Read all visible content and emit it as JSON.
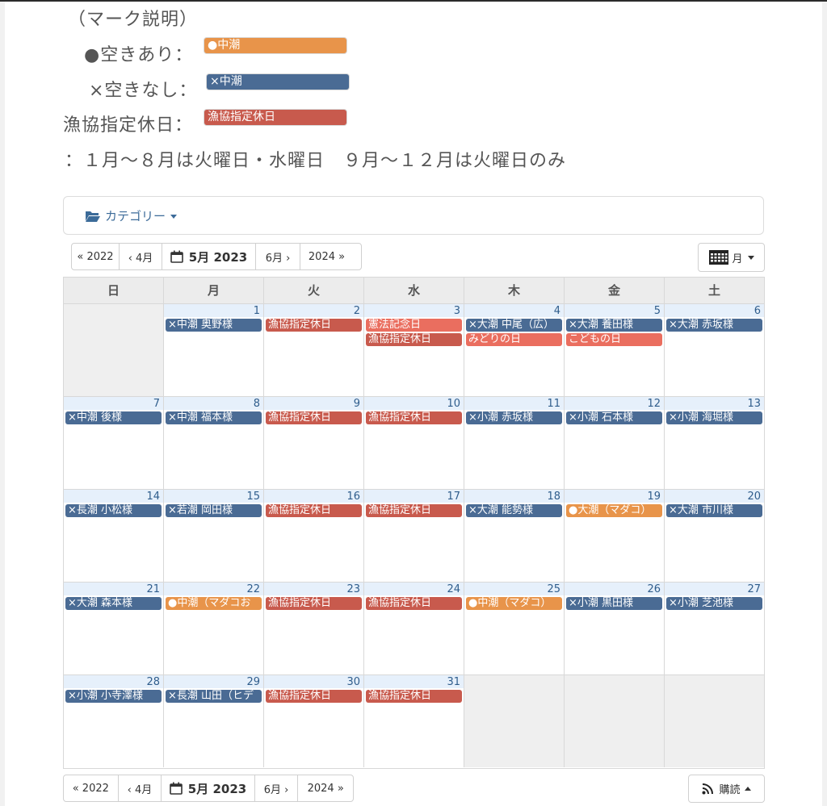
{
  "legend": {
    "heading": "（マーク説明）",
    "available_label": "●空きあり：",
    "available_tag": "●中潮",
    "full_label": "×空きなし：",
    "full_tag": "×中潮",
    "holiday_label": "漁協指定休日：",
    "holiday_tag": "漁協指定休日",
    "note": "：１月～８月は火曜日・水曜日　９月～１２月は火曜日のみ"
  },
  "colors": {
    "available": "#e8944a",
    "full": "#4a6b94",
    "holiday": "#c85a4d",
    "public_holiday": "#ea6e5f"
  },
  "category": {
    "label": "カテゴリー",
    "icon": "folder-open-icon"
  },
  "nav": {
    "prev_year": "« 2022",
    "prev_month": "‹ 4月",
    "current": "5月 2023",
    "next_month": "6月 ›",
    "next_year": "2024 »",
    "calendar_icon": "calendar-icon"
  },
  "view": {
    "label": "月",
    "icon": "calendar-grid-icon"
  },
  "subscribe": {
    "label": "購読",
    "icon": "rss-icon"
  },
  "weekdays": [
    "日",
    "月",
    "火",
    "水",
    "木",
    "金",
    "土"
  ],
  "weeks": [
    [
      {
        "day": "",
        "outside": true,
        "events": []
      },
      {
        "day": "1",
        "events": [
          {
            "text": "×中潮 奥野様",
            "type": "full"
          }
        ]
      },
      {
        "day": "2",
        "events": [
          {
            "text": "漁協指定休日",
            "type": "holiday"
          }
        ]
      },
      {
        "day": "3",
        "events": [
          {
            "text": "憲法記念日",
            "type": "public_holiday"
          },
          {
            "text": "漁協指定休日",
            "type": "holiday"
          }
        ]
      },
      {
        "day": "4",
        "events": [
          {
            "text": "×大潮 中尾（広）",
            "type": "full"
          },
          {
            "text": "みどりの日",
            "type": "public_holiday"
          }
        ]
      },
      {
        "day": "5",
        "events": [
          {
            "text": "×大潮 養田様",
            "type": "full"
          },
          {
            "text": "こどもの日",
            "type": "public_holiday"
          }
        ]
      },
      {
        "day": "6",
        "events": [
          {
            "text": "×大潮 赤坂様",
            "type": "full"
          }
        ]
      }
    ],
    [
      {
        "day": "7",
        "events": [
          {
            "text": "×中潮 後様",
            "type": "full"
          }
        ]
      },
      {
        "day": "8",
        "events": [
          {
            "text": "×中潮 福本様",
            "type": "full"
          }
        ]
      },
      {
        "day": "9",
        "events": [
          {
            "text": "漁協指定休日",
            "type": "holiday"
          }
        ]
      },
      {
        "day": "10",
        "events": [
          {
            "text": "漁協指定休日",
            "type": "holiday"
          }
        ]
      },
      {
        "day": "11",
        "events": [
          {
            "text": "×小潮 赤坂様",
            "type": "full"
          }
        ]
      },
      {
        "day": "12",
        "events": [
          {
            "text": "×小潮 石本様",
            "type": "full"
          }
        ]
      },
      {
        "day": "13",
        "events": [
          {
            "text": "×小潮 海堀様",
            "type": "full"
          }
        ]
      }
    ],
    [
      {
        "day": "14",
        "events": [
          {
            "text": "×長潮 小松様",
            "type": "full"
          }
        ]
      },
      {
        "day": "15",
        "events": [
          {
            "text": "×若潮 岡田様",
            "type": "full"
          }
        ]
      },
      {
        "day": "16",
        "events": [
          {
            "text": "漁協指定休日",
            "type": "holiday"
          }
        ]
      },
      {
        "day": "17",
        "events": [
          {
            "text": "漁協指定休日",
            "type": "holiday"
          }
        ]
      },
      {
        "day": "18",
        "events": [
          {
            "text": "×大潮 能勢様",
            "type": "full"
          }
        ]
      },
      {
        "day": "19",
        "events": [
          {
            "text": "●大潮（マダコ）",
            "type": "available"
          }
        ]
      },
      {
        "day": "20",
        "events": [
          {
            "text": "×大潮 市川様",
            "type": "full"
          }
        ]
      }
    ],
    [
      {
        "day": "21",
        "events": [
          {
            "text": "×大潮 森本様",
            "type": "full"
          }
        ]
      },
      {
        "day": "22",
        "events": [
          {
            "text": "●中潮（マダコお",
            "type": "available"
          }
        ]
      },
      {
        "day": "23",
        "events": [
          {
            "text": "漁協指定休日",
            "type": "holiday"
          }
        ]
      },
      {
        "day": "24",
        "events": [
          {
            "text": "漁協指定休日",
            "type": "holiday"
          }
        ]
      },
      {
        "day": "25",
        "events": [
          {
            "text": "●中潮（マダコ）",
            "type": "available"
          }
        ]
      },
      {
        "day": "26",
        "events": [
          {
            "text": "×小潮 黒田様",
            "type": "full"
          }
        ]
      },
      {
        "day": "27",
        "events": [
          {
            "text": "×小潮 芝池様",
            "type": "full"
          }
        ]
      }
    ],
    [
      {
        "day": "28",
        "events": [
          {
            "text": "×小潮 小寺澤様",
            "type": "full"
          }
        ]
      },
      {
        "day": "29",
        "events": [
          {
            "text": "×長潮 山田（ヒデ",
            "type": "full"
          }
        ]
      },
      {
        "day": "30",
        "events": [
          {
            "text": "漁協指定休日",
            "type": "holiday"
          }
        ]
      },
      {
        "day": "31",
        "events": [
          {
            "text": "漁協指定休日",
            "type": "holiday"
          }
        ]
      },
      {
        "day": "",
        "outside": true,
        "events": []
      },
      {
        "day": "",
        "outside": true,
        "events": []
      },
      {
        "day": "",
        "outside": true,
        "events": []
      }
    ]
  ]
}
